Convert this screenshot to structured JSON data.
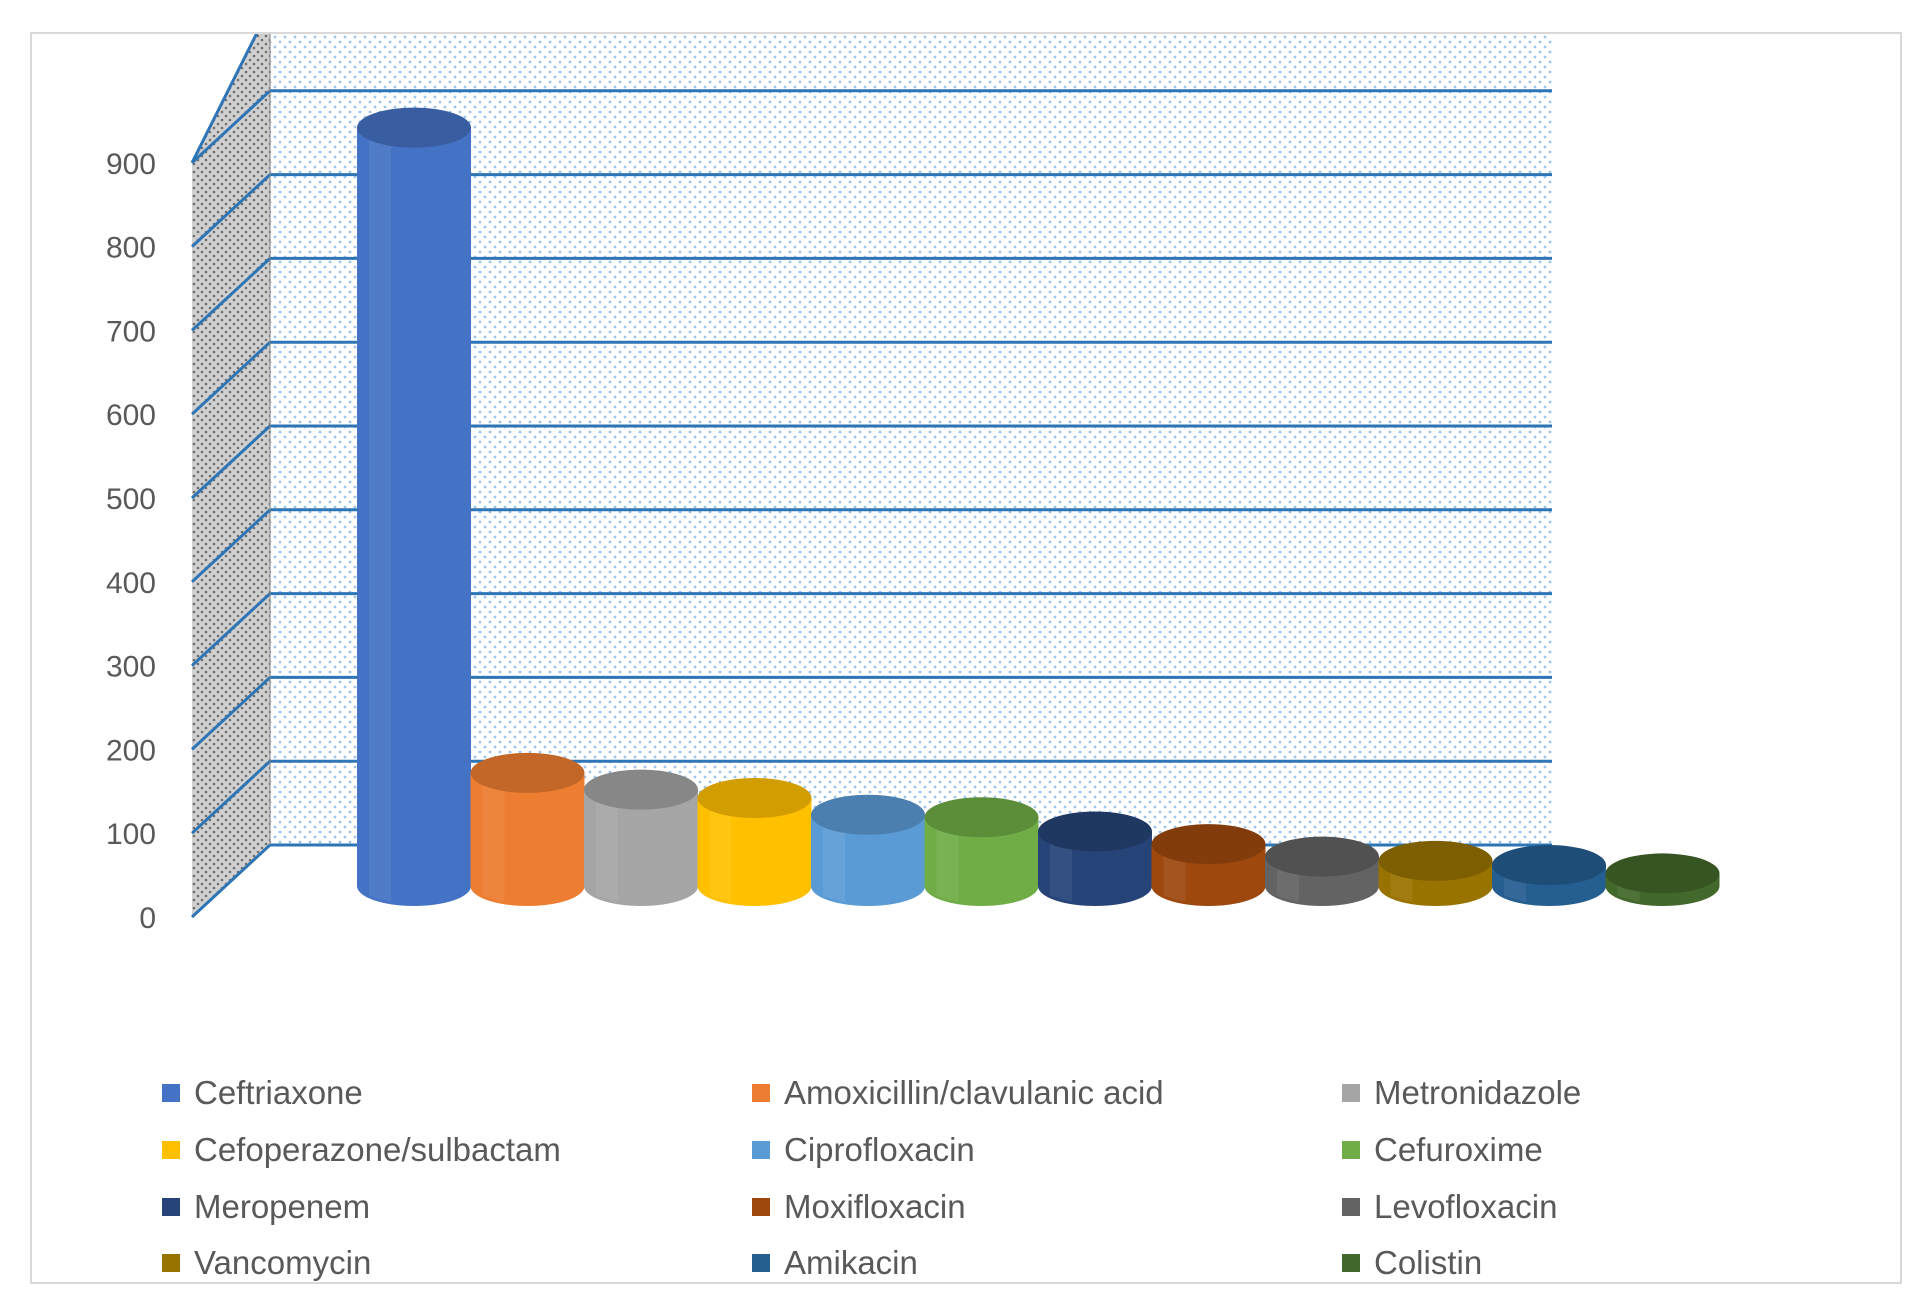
{
  "chart_data": {
    "type": "bar",
    "style": "3d-cylinder",
    "title": "",
    "xlabel": "",
    "ylabel": "",
    "ylim": [
      0,
      900
    ],
    "y_ticks": [
      "0",
      "100",
      "200",
      "300",
      "400",
      "500",
      "600",
      "700",
      "800",
      "900"
    ],
    "grid": true,
    "legend_position": "bottom",
    "categories": [
      "Ceftriaxone",
      "Amoxicillin/clavulanic acid",
      "Metronidazole",
      "Cefoperazone/sulbactam",
      "Ciprofloxacin",
      "Cefuroxime",
      "Meropenem",
      "Moxifloxacin",
      "Levofloxacin",
      "Vancomycin",
      "Amikacin",
      "Colistin"
    ],
    "values": [
      905,
      135,
      115,
      105,
      85,
      82,
      65,
      50,
      35,
      30,
      25,
      15
    ],
    "colors": [
      "#4472C4",
      "#ED7D31",
      "#A5A5A5",
      "#FFC000",
      "#5B9BD5",
      "#70AD47",
      "#264478",
      "#9E480E",
      "#636363",
      "#997300",
      "#255E91",
      "#43682B"
    ],
    "grid_color": "#2E75B6",
    "wall_color": "#DEEBF7",
    "side_wall_color": "#BFBFBF"
  }
}
